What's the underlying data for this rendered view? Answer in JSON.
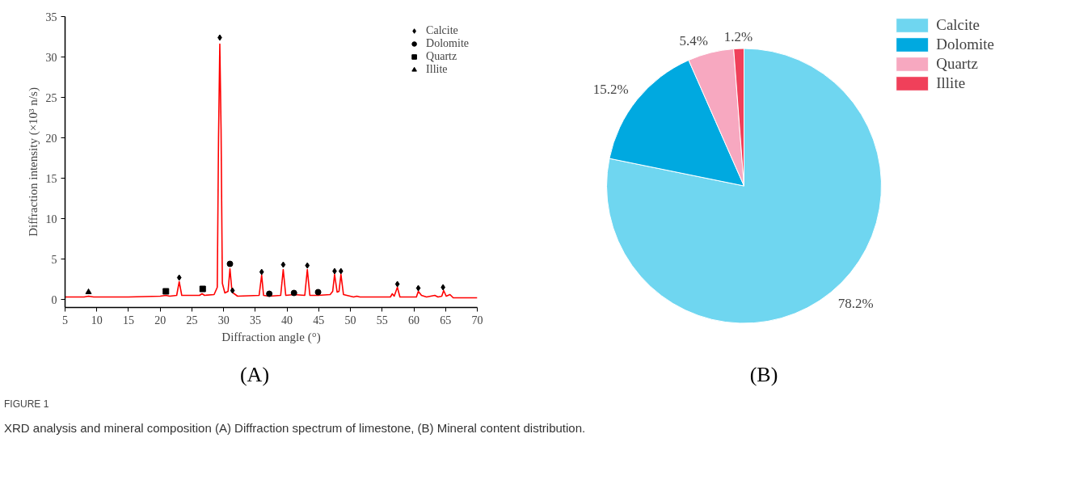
{
  "chart_data": [
    {
      "type": "line",
      "xlabel": "Diffraction angle (°)",
      "ylabel": "Diffraction intensity (×10³ n/s)",
      "xlim": [
        5,
        70
      ],
      "ylim": [
        -1,
        35
      ],
      "xticks": [
        5,
        10,
        15,
        20,
        25,
        30,
        35,
        40,
        45,
        50,
        55,
        60,
        65,
        70
      ],
      "yticks": [
        0,
        5,
        10,
        15,
        20,
        25,
        30,
        35
      ],
      "grid": false,
      "legend": "top right",
      "annotations": [
        "(A)",
        "FIGURE 1",
        "XRD analysis and mineral composition (A) Diffraction spectrum of limestone, (B) Mineral content distribution."
      ],
      "series": [
        {
          "type": "line",
          "color": "#ff0000",
          "line_style": "solid",
          "x": [
            5,
            8,
            8.7,
            9.5,
            15,
            20,
            20.9,
            21.5,
            22.6,
            23.0,
            23.4,
            26.2,
            26.6,
            27.0,
            28.5,
            29.0,
            29.2,
            29.4,
            29.6,
            29.8,
            30.2,
            30.7,
            31.0,
            31.3,
            31.5,
            32.2,
            35.6,
            36.0,
            36.3,
            37.2,
            39.0,
            39.4,
            39.8,
            41.1,
            42.8,
            43.2,
            43.6,
            44.9,
            46.8,
            47.2,
            47.5,
            47.9,
            48.2,
            48.5,
            48.9,
            50.5,
            51.0,
            51.5,
            56.3,
            56.6,
            56.9,
            57.4,
            57.8,
            60.4,
            60.7,
            61.2,
            62.0,
            63.3,
            63.8,
            64.4,
            64.7,
            65.1,
            65.7,
            66.2,
            70
          ],
          "values": [
            0.3,
            0.3,
            0.4,
            0.3,
            0.3,
            0.4,
            0.5,
            0.4,
            0.5,
            2.2,
            0.5,
            0.5,
            0.7,
            0.5,
            0.6,
            1.5,
            20,
            31.6,
            21,
            2.0,
            0.8,
            1.0,
            3.8,
            1.2,
            0.8,
            0.4,
            0.5,
            3.0,
            0.5,
            0.4,
            0.5,
            3.7,
            0.5,
            0.6,
            0.5,
            3.7,
            0.5,
            0.5,
            0.6,
            1.0,
            3.1,
            0.9,
            1.0,
            3.1,
            0.6,
            0.3,
            0.4,
            0.3,
            0.3,
            0.7,
            0.4,
            1.5,
            0.3,
            0.3,
            1.0,
            0.5,
            0.3,
            0.5,
            0.3,
            0.4,
            1.1,
            0.4,
            0.6,
            0.2,
            0.2
          ]
        },
        {
          "type": "scatter",
          "name": "Calcite",
          "color": "#000000",
          "marker": "diamond",
          "x": [
            23.0,
            29.4,
            31.4,
            36.0,
            39.4,
            43.2,
            47.5,
            48.5,
            57.4,
            60.7,
            64.6
          ],
          "values": [
            2.7,
            32.4,
            1.1,
            3.4,
            4.3,
            4.2,
            3.5,
            3.5,
            1.9,
            1.4,
            1.5
          ]
        },
        {
          "type": "scatter",
          "name": "Dolomite",
          "color": "#000000",
          "marker": "circle",
          "x": [
            31.0,
            37.2,
            41.1,
            44.9
          ],
          "values": [
            4.4,
            0.7,
            0.8,
            0.9
          ]
        },
        {
          "type": "scatter",
          "name": "Quartz",
          "color": "#000000",
          "marker": "square",
          "x": [
            20.9,
            26.7
          ],
          "values": [
            1.0,
            1.3
          ]
        },
        {
          "type": "scatter",
          "name": "Illite",
          "color": "#000000",
          "marker": "triangle",
          "x": [
            8.7
          ],
          "values": [
            0.9
          ]
        }
      ]
    },
    {
      "type": "pie",
      "legend": "top right",
      "annotations": [
        "(B)"
      ],
      "categories": [
        "Calcite",
        "Dolomite",
        "Quartz",
        "Illite"
      ],
      "values": [
        78.2,
        15.2,
        5.4,
        1.2
      ],
      "colors": [
        "#6fd6f0",
        "#00a9e0",
        "#f7a8c0",
        "#f0405a"
      ],
      "value_labels": [
        "78.2%",
        "15.2%",
        "5.4%",
        "1.2%"
      ]
    }
  ]
}
